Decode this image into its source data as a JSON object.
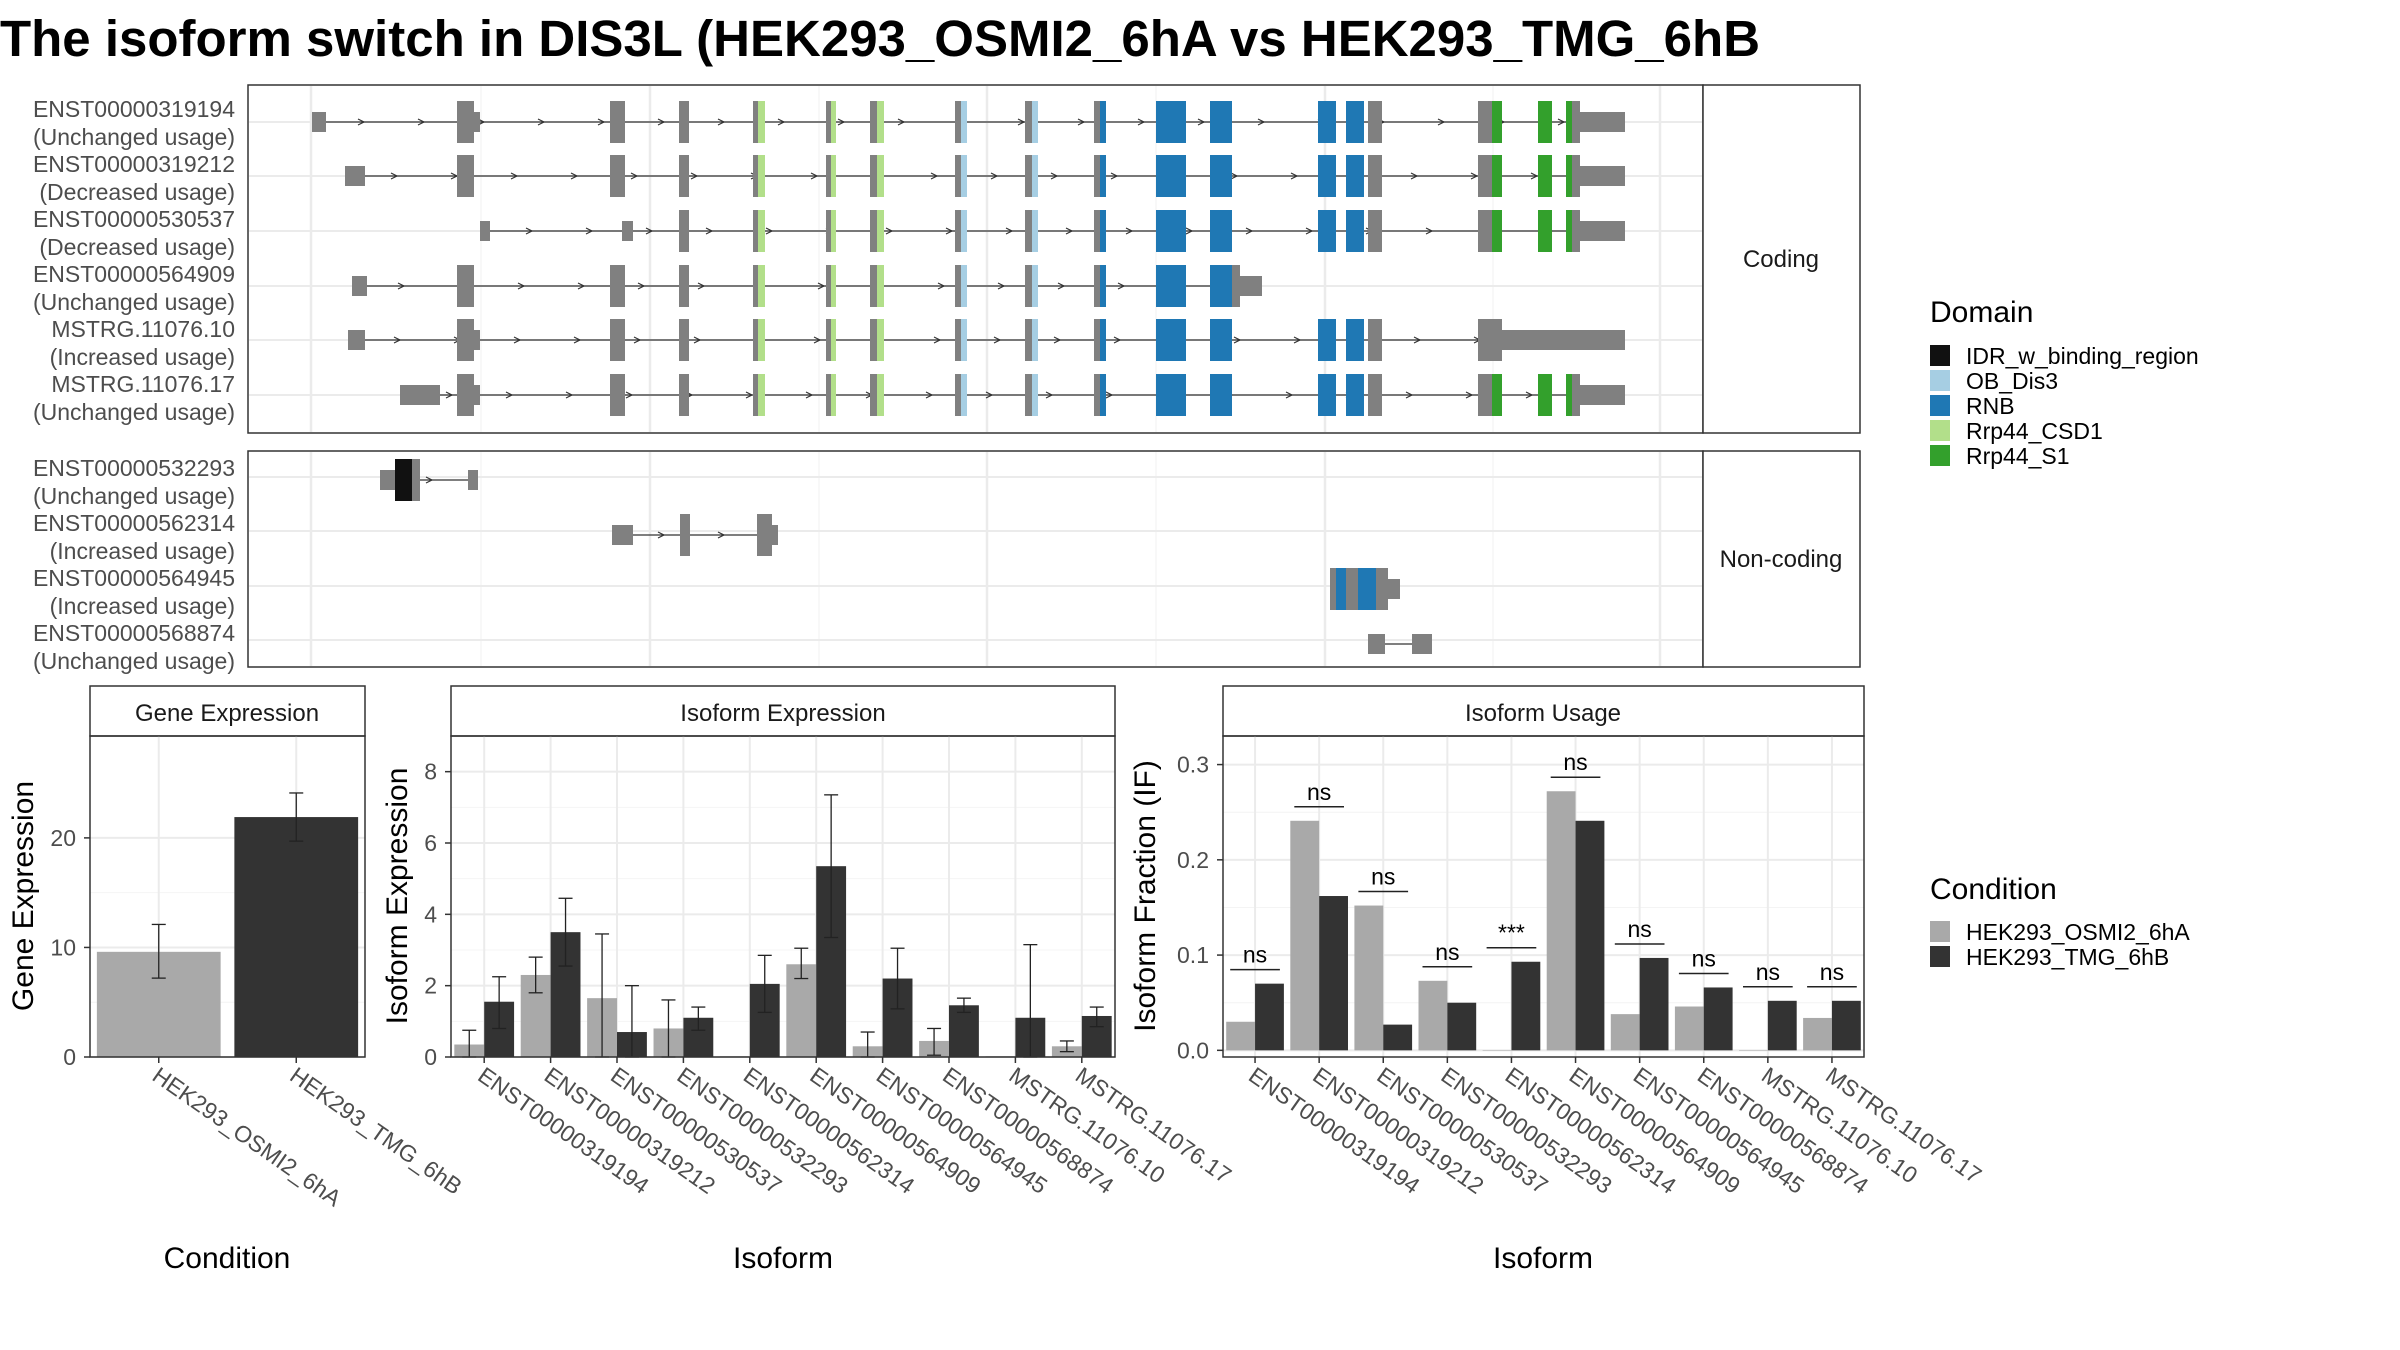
{
  "title": "The isoform switch in DIS3L (HEK293_OSMI2_6hA vs HEK293_TMG_6hB",
  "colors": {
    "cond_a": "#a9a9a9",
    "cond_b": "#333333",
    "exon": "#808080",
    "panel_border": "#333333",
    "strip_fill": "#ffffff",
    "grid": "#ebebeb",
    "domains": {
      "IDR_w_binding_region": "#111111",
      "OB_Dis3": "#a6cee3",
      "RNB": "#1f78b4",
      "Rrp44_CSD1": "#b2df8a",
      "Rrp44_S1": "#33a02c"
    }
  },
  "structure": {
    "coding_label": "Coding",
    "noncoding_label": "Non-coding",
    "coding": [
      {
        "id": "ENST00000319194",
        "usage": "(Unchanged usage)"
      },
      {
        "id": "ENST00000319212",
        "usage": "(Decreased usage)"
      },
      {
        "id": "ENST00000530537",
        "usage": "(Decreased usage)"
      },
      {
        "id": "ENST00000564909",
        "usage": "(Unchanged usage)"
      },
      {
        "id": "MSTRG.11076.10",
        "usage": "(Increased usage)"
      },
      {
        "id": "MSTRG.11076.17",
        "usage": "(Unchanged usage)"
      }
    ],
    "noncoding": [
      {
        "id": "ENST00000532293",
        "usage": "(Unchanged usage)"
      },
      {
        "id": "ENST00000562314",
        "usage": "(Increased usage)"
      },
      {
        "id": "ENST00000564945",
        "usage": "(Increased usage)"
      },
      {
        "id": "ENST00000568874",
        "usage": "(Unchanged usage)"
      }
    ]
  },
  "legend_domain": {
    "title": "Domain",
    "items": [
      "IDR_w_binding_region",
      "OB_Dis3",
      "RNB",
      "Rrp44_CSD1",
      "Rrp44_S1"
    ]
  },
  "legend_condition": {
    "title": "Condition",
    "items": [
      "HEK293_OSMI2_6hA",
      "HEK293_TMG_6hB"
    ]
  },
  "chart_data": [
    {
      "type": "bar",
      "title": "Gene Expression",
      "xlabel": "Condition",
      "ylabel": "Gene Expression",
      "categories": [
        "HEK293_OSMI2_6hA",
        "HEK293_TMG_6hB"
      ],
      "values": [
        9.6,
        21.9
      ],
      "errors": [
        [
          7.2,
          12.1
        ],
        [
          19.7,
          24.1
        ]
      ],
      "ylim": [
        0,
        29.3
      ],
      "yticks": [
        0,
        10,
        20
      ]
    },
    {
      "type": "bar",
      "title": "Isoform Expression",
      "xlabel": "Isoform",
      "ylabel": "Isoform Expression",
      "categories": [
        "ENST00000319194",
        "ENST00000319212",
        "ENST00000530537",
        "ENST00000532293",
        "ENST00000562314",
        "ENST00000564909",
        "ENST00000564945",
        "ENST00000568874",
        "MSTRG.11076.10",
        "MSTRG.11076.17"
      ],
      "series": [
        {
          "name": "HEK293_OSMI2_6hA",
          "values": [
            0.35,
            2.3,
            1.65,
            0.8,
            0.02,
            2.6,
            0.3,
            0.45,
            0.02,
            0.3
          ],
          "errors": [
            [
              0.0,
              0.75
            ],
            [
              1.8,
              2.8
            ],
            [
              0.0,
              3.45
            ],
            [
              0.0,
              1.6
            ],
            null,
            [
              2.2,
              3.05
            ],
            [
              0.0,
              0.7
            ],
            [
              0.05,
              0.8
            ],
            null,
            [
              0.15,
              0.45
            ]
          ]
        },
        {
          "name": "HEK293_TMG_6hB",
          "values": [
            1.55,
            3.5,
            0.7,
            1.1,
            2.05,
            5.35,
            2.2,
            1.45,
            1.1,
            1.15
          ],
          "errors": [
            [
              0.8,
              2.25
            ],
            [
              2.55,
              4.45
            ],
            [
              0.0,
              2.0
            ],
            [
              0.75,
              1.4
            ],
            [
              1.25,
              2.85
            ],
            [
              3.35,
              7.35
            ],
            [
              1.35,
              3.05
            ],
            [
              1.25,
              1.65
            ],
            [
              0.0,
              3.15
            ],
            [
              0.85,
              1.4
            ]
          ]
        }
      ],
      "ylim": [
        0,
        9.0
      ],
      "yticks": [
        0,
        2,
        4,
        6,
        8
      ]
    },
    {
      "type": "bar",
      "title": "Isoform Usage",
      "xlabel": "Isoform",
      "ylabel": "Isoform Fraction (IF)",
      "categories": [
        "ENST00000319194",
        "ENST00000319212",
        "ENST00000530537",
        "ENST00000532293",
        "ENST00000562314",
        "ENST00000564909",
        "ENST00000564945",
        "ENST00000568874",
        "MSTRG.11076.10",
        "MSTRG.11076.17"
      ],
      "series": [
        {
          "name": "HEK293_OSMI2_6hA",
          "values": [
            0.03,
            0.241,
            0.152,
            0.073,
            0.0,
            0.272,
            0.038,
            0.046,
            0.0,
            0.034
          ]
        },
        {
          "name": "HEK293_TMG_6hB",
          "values": [
            0.07,
            0.162,
            0.027,
            0.05,
            0.093,
            0.241,
            0.097,
            0.066,
            0.052,
            0.052
          ]
        }
      ],
      "significance": [
        "ns",
        "ns",
        "ns",
        "ns",
        "***",
        "ns",
        "ns",
        "ns",
        "ns",
        "ns"
      ],
      "ylim": [
        -0.007,
        0.33
      ],
      "yticks": [
        0.0,
        0.1,
        0.2,
        0.3
      ]
    }
  ]
}
